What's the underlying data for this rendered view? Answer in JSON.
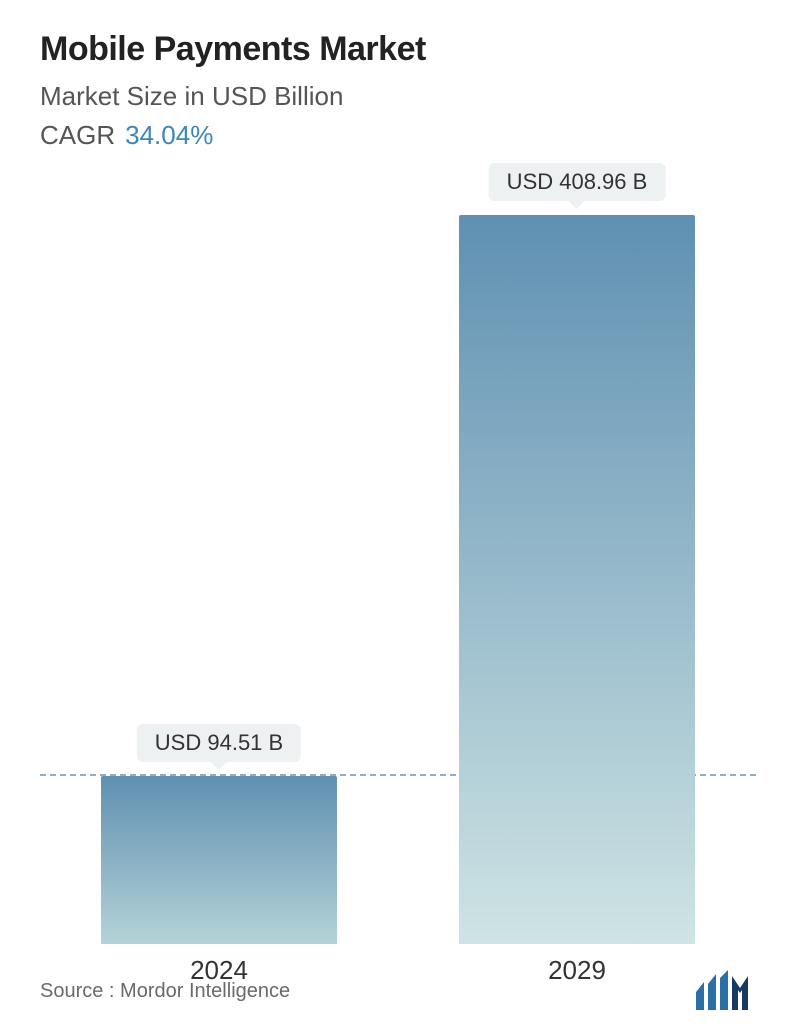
{
  "chart": {
    "type": "bar",
    "title": "Mobile Payments Market",
    "subtitle": "Market Size in USD Billion",
    "cagr_label": "CAGR",
    "cagr_value": "34.04%",
    "background_color": "#ffffff",
    "title_color": "#222222",
    "subtitle_color": "#555555",
    "cagr_value_color": "#3d87b5",
    "title_fontsize": 34,
    "subtitle_fontsize": 26,
    "baseline_value": 94.51,
    "baseline_dash_color": "#4a7a9a",
    "max_value": 408.96,
    "bar_width_pct": 33,
    "bars": [
      {
        "year": "2024",
        "value": 94.51,
        "label": "USD 94.51 B",
        "x_center_pct": 25,
        "gradient_top": "#5f90b2",
        "gradient_bottom": "#b4d3d7"
      },
      {
        "year": "2029",
        "value": 408.96,
        "label": "USD 408.96 B",
        "x_center_pct": 75,
        "gradient_top": "#5f90b2",
        "gradient_bottom": "#cfe4e4"
      }
    ],
    "pill_bg": "#eef1f2",
    "pill_text_color": "#333333",
    "pill_fontsize": 22,
    "xlabel_fontsize": 26,
    "xlabel_color": "#333333"
  },
  "footer": {
    "source_text": "Source :  Mordor Intelligence",
    "source_color": "#6a6a6a",
    "source_fontsize": 20,
    "logo_colors": {
      "bars": "#2a6fa5",
      "n": "#173a63"
    }
  }
}
